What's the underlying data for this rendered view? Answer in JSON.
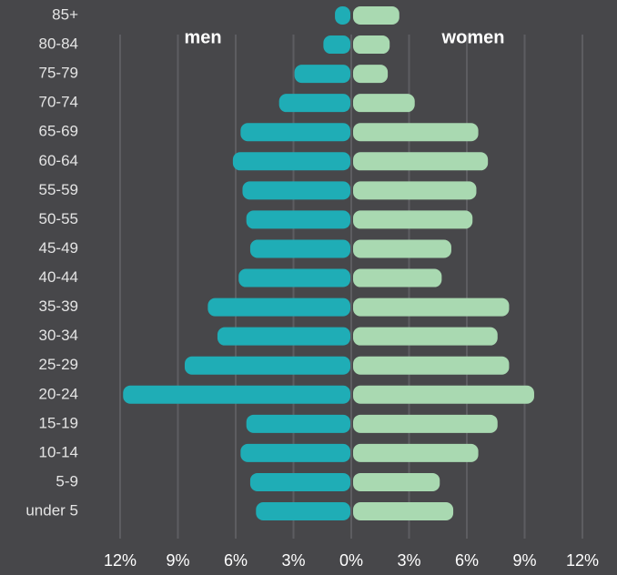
{
  "chart_data": {
    "type": "pyramid",
    "categories": [
      "85+",
      "80-84",
      "75-79",
      "70-74",
      "65-69",
      "60-64",
      "55-59",
      "50-55",
      "45-49",
      "40-44",
      "35-39",
      "30-34",
      "25-29",
      "20-24",
      "15-19",
      "10-14",
      "5-9",
      "under 5"
    ],
    "series": [
      {
        "name": "men",
        "color": "#1fadb6",
        "values": [
          0.8,
          1.4,
          2.9,
          3.7,
          5.7,
          6.1,
          5.6,
          5.4,
          5.2,
          5.8,
          7.4,
          6.9,
          8.6,
          11.8,
          5.4,
          5.7,
          5.2,
          4.9
        ]
      },
      {
        "name": "women",
        "color": "#a9d9b1",
        "values": [
          2.4,
          1.9,
          1.8,
          3.2,
          6.5,
          7.0,
          6.4,
          6.2,
          5.1,
          4.6,
          8.1,
          7.5,
          8.1,
          9.4,
          7.5,
          6.5,
          4.5,
          5.2
        ]
      }
    ],
    "xlim": [
      -12,
      12
    ],
    "xticks": [
      {
        "value": -12,
        "label": "12%"
      },
      {
        "value": -9,
        "label": "9%"
      },
      {
        "value": -6,
        "label": "6%"
      },
      {
        "value": -3,
        "label": "3%"
      },
      {
        "value": 0,
        "label": "0%"
      },
      {
        "value": 3,
        "label": "3%"
      },
      {
        "value": 6,
        "label": "6%"
      },
      {
        "value": 9,
        "label": "9%"
      },
      {
        "value": 12,
        "label": "12%"
      }
    ],
    "grid": true
  }
}
